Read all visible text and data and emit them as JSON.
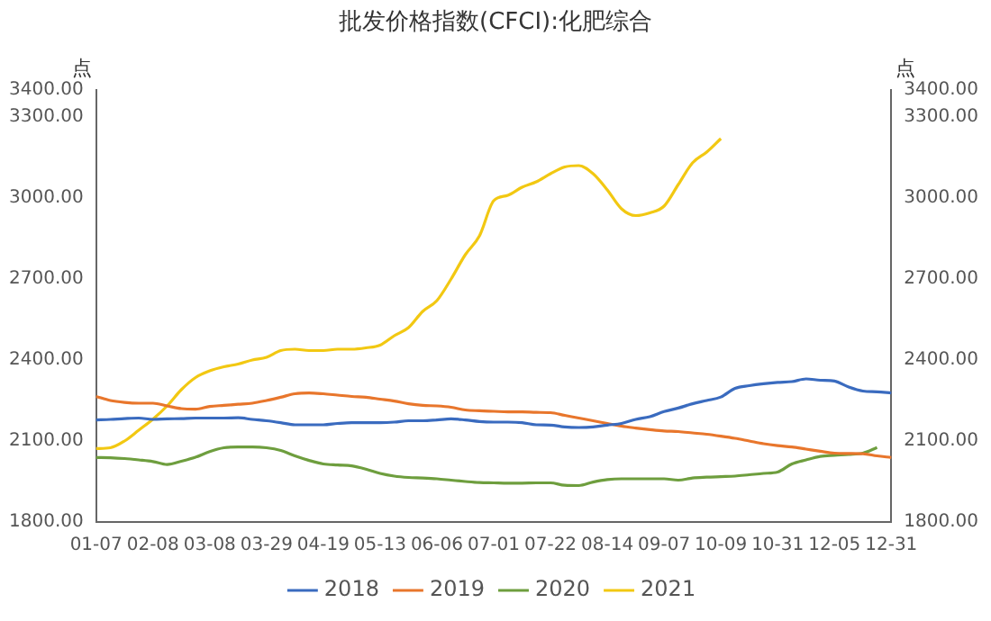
{
  "chart_data": {
    "type": "line",
    "title": "批发价格指数(CFCI):化肥综合",
    "ylabel": "点",
    "y2label": "点",
    "categories": [
      "01-07",
      null,
      null,
      null,
      "02-08",
      null,
      null,
      null,
      "03-08",
      null,
      null,
      null,
      "03-29",
      null,
      null,
      null,
      "04-19",
      null,
      null,
      null,
      "05-13",
      null,
      null,
      null,
      "06-06",
      null,
      null,
      null,
      "07-01",
      null,
      null,
      null,
      "07-22",
      null,
      null,
      null,
      "08-14",
      null,
      null,
      null,
      "09-07",
      null,
      null,
      null,
      "10-09",
      null,
      null,
      null,
      "10-31",
      null,
      null,
      null,
      "12-05",
      null,
      null,
      null,
      "12-31"
    ],
    "series": [
      {
        "name": "2018",
        "color": "#3a6bbf",
        "values": [
          2178,
          2180,
          2183,
          2185,
          2180,
          2182,
          2183,
          2185,
          2185,
          2185,
          2186,
          2180,
          2175,
          2168,
          2160,
          2160,
          2160,
          2165,
          2168,
          2168,
          2168,
          2170,
          2175,
          2175,
          2178,
          2182,
          2178,
          2172,
          2170,
          2170,
          2168,
          2160,
          2159,
          2152,
          2150,
          2152,
          2159,
          2165,
          2180,
          2190,
          2209,
          2222,
          2238,
          2250,
          2263,
          2295,
          2305,
          2312,
          2317,
          2320,
          2330,
          2325,
          2322,
          2300,
          2285,
          2282,
          2278
        ]
      },
      {
        "name": "2019",
        "color": "#e8762c",
        "values": [
          2265,
          2250,
          2243,
          2240,
          2240,
          2230,
          2220,
          2218,
          2228,
          2232,
          2236,
          2240,
          2250,
          2262,
          2275,
          2278,
          2275,
          2270,
          2265,
          2262,
          2255,
          2248,
          2238,
          2232,
          2230,
          2225,
          2215,
          2212,
          2210,
          2208,
          2208,
          2206,
          2205,
          2195,
          2185,
          2175,
          2165,
          2155,
          2148,
          2142,
          2137,
          2135,
          2130,
          2125,
          2118,
          2110,
          2100,
          2090,
          2083,
          2078,
          2070,
          2062,
          2055,
          2054,
          2053,
          2045,
          2039
        ]
      },
      {
        "name": "2020",
        "color": "#6e9e3e",
        "values": [
          2039,
          2038,
          2035,
          2030,
          2024,
          2013,
          2025,
          2040,
          2061,
          2075,
          2078,
          2078,
          2075,
          2065,
          2045,
          2028,
          2015,
          2011,
          2008,
          1996,
          1980,
          1970,
          1965,
          1963,
          1960,
          1955,
          1950,
          1946,
          1945,
          1944,
          1944,
          1945,
          1945,
          1936,
          1935,
          1948,
          1957,
          1960,
          1960,
          1960,
          1960,
          1955,
          1963,
          1966,
          1968,
          1970,
          1975,
          1980,
          1985,
          2015,
          2030,
          2043,
          2047,
          2050,
          2055,
          2076,
          null
        ]
      },
      {
        "name": "2021",
        "color": "#f2c812",
        "values": [
          2072,
          2075,
          2100,
          2140,
          2181,
          2230,
          2290,
          2335,
          2360,
          2375,
          2385,
          2400,
          2410,
          2435,
          2440,
          2435,
          2435,
          2440,
          2440,
          2445,
          2455,
          2490,
          2520,
          2580,
          2620,
          2700,
          2790,
          2860,
          2990,
          3010,
          3040,
          3060,
          3090,
          3115,
          3120,
          3090,
          3030,
          2960,
          2935,
          2945,
          2970,
          3050,
          3130,
          3170,
          3220,
          null,
          null,
          null,
          null,
          null,
          null,
          null,
          null,
          null,
          null,
          null,
          null
        ]
      }
    ],
    "ylim": [
      1800,
      3400
    ],
    "yticks": [
      {
        "value": 1800,
        "label": "1800.00"
      },
      {
        "value": 2100,
        "label": "2100.00"
      },
      {
        "value": 2400,
        "label": "2400.00"
      },
      {
        "value": 2700,
        "label": "2700.00"
      },
      {
        "value": 3000,
        "label": "3000.00"
      },
      {
        "value": 3300,
        "label": "3300.00"
      },
      {
        "value": 3400,
        "label": "3400.00"
      }
    ],
    "y2lim": [
      1800,
      3400
    ],
    "y2ticks": [
      {
        "value": 1800,
        "label": "1800.00"
      },
      {
        "value": 2100,
        "label": "2100.00"
      },
      {
        "value": 2400,
        "label": "2400.00"
      },
      {
        "value": 2700,
        "label": "2700.00"
      },
      {
        "value": 3000,
        "label": "3000.00"
      },
      {
        "value": 3300,
        "label": "3300.00"
      },
      {
        "value": 3400,
        "label": "3400.00"
      }
    ],
    "grid": false,
    "legend": "bottom"
  }
}
